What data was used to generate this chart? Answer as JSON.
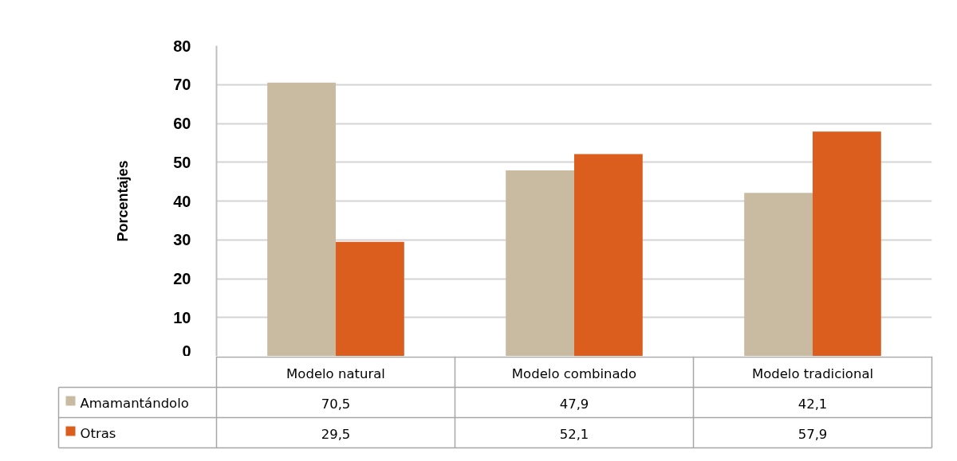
{
  "chart_data": {
    "type": "bar",
    "ylabel": "Porcentajes",
    "categories": [
      "Modelo natural",
      "Modelo combinado",
      "Modelo tradicional"
    ],
    "series": [
      {
        "name": "Amamantándolo",
        "color": "#c9bba2",
        "values": [
          70.5,
          47.9,
          42.1
        ],
        "value_labels": [
          "70,5",
          "47,9",
          "42,1"
        ]
      },
      {
        "name": "Otras",
        "color": "#dc5e1e",
        "values": [
          29.5,
          52.1,
          57.9
        ],
        "value_labels": [
          "29,5",
          "52,1",
          "57,9"
        ]
      }
    ],
    "ylim": [
      0,
      80
    ],
    "yticks": [
      0,
      10,
      20,
      30,
      40,
      50,
      60,
      70,
      80
    ],
    "grid": "y",
    "legend": "bottom"
  }
}
